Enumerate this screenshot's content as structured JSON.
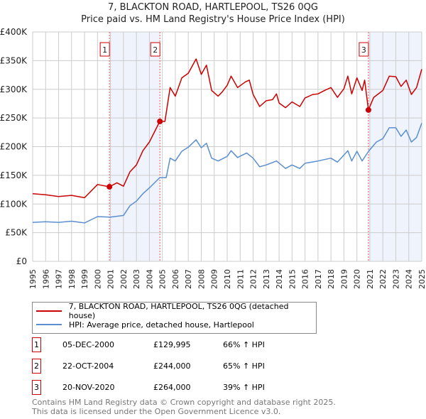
{
  "chart_data": {
    "type": "line",
    "title": "7, BLACKTON ROAD, HARTLEPOOL, TS26 0QG",
    "subtitle": "Price paid vs. HM Land Registry's House Price Index (HPI)",
    "xlim": [
      1995,
      2025
    ],
    "ylim": [
      0,
      400000
    ],
    "grid": true,
    "y_ticks": [
      {
        "v": 0,
        "label": "£0"
      },
      {
        "v": 50000,
        "label": "£50K"
      },
      {
        "v": 100000,
        "label": "£100K"
      },
      {
        "v": 150000,
        "label": "£150K"
      },
      {
        "v": 200000,
        "label": "£200K"
      },
      {
        "v": 250000,
        "label": "£250K"
      },
      {
        "v": 300000,
        "label": "£300K"
      },
      {
        "v": 350000,
        "label": "£350K"
      },
      {
        "v": 400000,
        "label": "£400K"
      }
    ],
    "x_ticks": [
      "1995",
      "1996",
      "1997",
      "1998",
      "1999",
      "2000",
      "2001",
      "2002",
      "2003",
      "2004",
      "2005",
      "2006",
      "2007",
      "2008",
      "2009",
      "2010",
      "2011",
      "2012",
      "2013",
      "2014",
      "2015",
      "2016",
      "2017",
      "2018",
      "2019",
      "2020",
      "2021",
      "2022",
      "2023",
      "2024",
      "2025"
    ],
    "series": [
      {
        "name": "7, BLACKTON ROAD, HARTLEPOOL, TS26 0QG (detached house)",
        "color": "#cc0000",
        "x": [
          1995,
          1996,
          1997,
          1998,
          1999,
          2000,
          2000.92,
          2001.5,
          2002,
          2002.5,
          2003,
          2003.5,
          2004,
          2004.8,
          2005.2,
          2005.6,
          2006,
          2006.5,
          2007,
          2007.6,
          2008,
          2008.4,
          2008.8,
          2009.3,
          2009.6,
          2010,
          2010.3,
          2010.8,
          2011.4,
          2011.7,
          2012,
          2012.5,
          2013,
          2013.5,
          2013.8,
          2014,
          2014.5,
          2015,
          2015.6,
          2016,
          2016.6,
          2017,
          2017.5,
          2018,
          2018.5,
          2019,
          2019.3,
          2019.6,
          2020,
          2020.4,
          2020.6,
          2020.89,
          2021.3,
          2022,
          2022.5,
          2023,
          2023.4,
          2023.8,
          2024.2,
          2024.6,
          2025
        ],
        "values": [
          118000,
          116000,
          113000,
          115000,
          111000,
          134000,
          129995,
          137000,
          131000,
          156000,
          168000,
          193000,
          208000,
          244000,
          244000,
          303000,
          288000,
          320000,
          328000,
          353000,
          326000,
          342000,
          298000,
          288000,
          295000,
          307000,
          323000,
          303000,
          313000,
          316000,
          291000,
          270000,
          280000,
          282000,
          292000,
          276000,
          268000,
          278000,
          270000,
          285000,
          291000,
          292000,
          298000,
          303000,
          286000,
          301000,
          323000,
          292000,
          320000,
          298000,
          316000,
          264000,
          286000,
          298000,
          323000,
          322000,
          305000,
          316000,
          291000,
          303000,
          335000
        ]
      },
      {
        "name": "HPI: Average price, detached house, Hartlepool",
        "color": "#5b8fd0",
        "x": [
          1995,
          1996,
          1997,
          1998,
          1999,
          2000,
          2001,
          2002,
          2002.5,
          2003,
          2003.5,
          2004,
          2004.8,
          2005.3,
          2005.6,
          2006,
          2006.5,
          2007,
          2007.6,
          2008,
          2008.4,
          2008.8,
          2009.3,
          2010,
          2010.3,
          2010.8,
          2011.5,
          2012,
          2012.5,
          2013,
          2013.8,
          2014.5,
          2015,
          2015.6,
          2016,
          2017,
          2018,
          2018.5,
          2019.3,
          2019.6,
          2020,
          2020.4,
          2020.9,
          2021.5,
          2022,
          2022.5,
          2023,
          2023.4,
          2023.8,
          2024.2,
          2024.6,
          2025
        ],
        "values": [
          68000,
          69000,
          68000,
          70000,
          67000,
          78000,
          77000,
          80000,
          97000,
          105000,
          118000,
          128000,
          146000,
          146000,
          180000,
          175000,
          192000,
          199000,
          212000,
          198000,
          206000,
          180000,
          175000,
          183000,
          193000,
          181000,
          189000,
          180000,
          165000,
          168000,
          175000,
          162000,
          168000,
          162000,
          171000,
          175000,
          180000,
          173000,
          193000,
          175000,
          192000,
          175000,
          192000,
          208000,
          214000,
          233000,
          233000,
          218000,
          229000,
          208000,
          216000,
          241000
        ]
      }
    ],
    "sales": [
      {
        "label": "1",
        "x": 2000.92,
        "value": 129995,
        "date": "05-DEC-2000",
        "price": "£129,995",
        "hpi": "66% ↑ HPI"
      },
      {
        "label": "2",
        "x": 2004.81,
        "value": 244000,
        "date": "22-OCT-2004",
        "price": "£244,000",
        "hpi": "65% ↑ HPI"
      },
      {
        "label": "3",
        "x": 2020.89,
        "value": 264000,
        "date": "20-NOV-2020",
        "price": "£264,000",
        "hpi": "39% ↑ HPI"
      }
    ],
    "legend_position": "below"
  },
  "footer": {
    "line1": "Contains HM Land Registry data © Crown copyright and database right 2025.",
    "line2": "This data is licensed under the Open Government Licence v3.0."
  }
}
